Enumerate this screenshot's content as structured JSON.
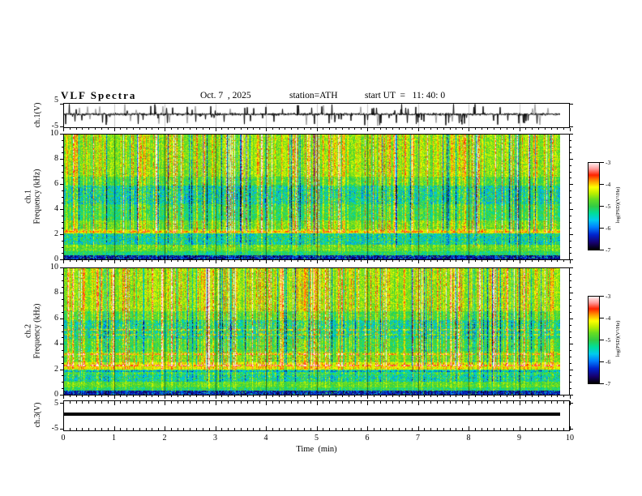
{
  "title_bar": {
    "main": "VLF  Spectra",
    "date": "Oct. 7  , 2025",
    "station": "station=ATH",
    "start_ut": "start UT  =   11: 40: 0"
  },
  "x_axis": {
    "label": "Time  (min)",
    "ticks": [
      "0",
      "1",
      "2",
      "3",
      "4",
      "5",
      "6",
      "7",
      "8",
      "9",
      "10"
    ],
    "lim": [
      0,
      10
    ],
    "minor_per_major": 8,
    "data_end_min": 9.8
  },
  "panels": {
    "ch1_wave": {
      "ylabel": "ch.1(V)",
      "ytick_top": "5",
      "ytick_bottom": "-5",
      "ylim": [
        -5,
        5
      ]
    },
    "ch1_spec": {
      "ylabel_line1": "ch.1",
      "ylabel_line2": "Frequency  (kHz)",
      "yticks": [
        "10",
        "8",
        "6",
        "4",
        "2",
        "0"
      ],
      "ylim": [
        0,
        10
      ]
    },
    "ch2_spec": {
      "ylabel_line1": "ch.2",
      "ylabel_line2": "Frequency  (kHz)",
      "yticks": [
        "10",
        "8",
        "6",
        "4",
        "2",
        "0"
      ],
      "ylim": [
        0,
        10
      ]
    },
    "ch3_wave": {
      "ylabel": "ch.3(V)",
      "ytick_top": "5",
      "ytick_bottom": "-5",
      "ylim": [
        -5,
        5
      ]
    }
  },
  "colorbar": {
    "label": "log(PSD)(V²/Hz)",
    "ticks": [
      "-3",
      "-4",
      "-5",
      "-6",
      "-7"
    ],
    "lim": [
      -7,
      -3
    ],
    "colormap": [
      [
        0.0,
        "#000000"
      ],
      [
        0.08,
        "#16006e"
      ],
      [
        0.17,
        "#0022cc"
      ],
      [
        0.26,
        "#0080ff"
      ],
      [
        0.34,
        "#00ccee"
      ],
      [
        0.42,
        "#00dd99"
      ],
      [
        0.5,
        "#33cc44"
      ],
      [
        0.58,
        "#66dd22"
      ],
      [
        0.65,
        "#bbee00"
      ],
      [
        0.72,
        "#ffff00"
      ],
      [
        0.79,
        "#ff9900"
      ],
      [
        0.86,
        "#ff2200"
      ],
      [
        0.93,
        "#ff9999"
      ],
      [
        1.0,
        "#fff2f2"
      ]
    ]
  },
  "chart_data": [
    {
      "type": "line",
      "title": "ch.1(V) broadband waveform",
      "xlabel": "Time (min)",
      "ylabel": "ch.1(V)",
      "xlim": [
        0,
        10
      ],
      "ylim": [
        -5,
        5
      ],
      "x_data_end": 9.8,
      "summary": "continuous noise about 0 V of ~±1 V with frequent bipolar impulsive sferic spikes reaching ±5 V"
    },
    {
      "type": "heatmap",
      "title": "ch.1 VLF spectrogram",
      "xlabel": "Time (min)",
      "ylabel": "Frequency (kHz)",
      "zlabel": "log(PSD)(V²/Hz)",
      "xlim": [
        0,
        10
      ],
      "ylim": [
        0,
        10
      ],
      "zlim": [
        -7,
        -3
      ],
      "bands": [
        {
          "f": [
            6.6,
            10.0
          ],
          "level": -4.6,
          "noise": 0.09
        },
        {
          "f": [
            5.9,
            6.6
          ],
          "level": -4.92,
          "noise": 0.1
        },
        {
          "f": [
            4.4,
            5.9
          ],
          "level": -5.4,
          "noise": 0.16
        },
        {
          "f": [
            3.1,
            4.4
          ],
          "level": -5.08,
          "noise": 0.11
        },
        {
          "f": [
            2.4,
            3.1
          ],
          "level": -4.76,
          "noise": 0.09
        },
        {
          "f": [
            2.05,
            2.4
          ],
          "level": -4.36,
          "noise": 0.08
        },
        {
          "f": [
            1.15,
            2.05
          ],
          "level": -5.4,
          "noise": 0.16
        },
        {
          "f": [
            0.65,
            1.15
          ],
          "level": -4.8,
          "noise": 0.09
        },
        {
          "f": [
            0.3,
            0.65
          ],
          "level": -5.16,
          "noise": 0.11
        },
        {
          "f": [
            0.0,
            0.3
          ],
          "level": -6.52,
          "noise": 0.1
        }
      ],
      "tones": [
        {
          "f": 2.2,
          "boost": 0.5,
          "dash": true
        }
      ],
      "texture": "dense vertical sferic streaks, strongest (red) above ~2.3 kHz; dark minute gridlines"
    },
    {
      "type": "heatmap",
      "title": "ch.2 VLF spectrogram",
      "xlabel": "Time (min)",
      "ylabel": "Frequency (kHz)",
      "zlabel": "log(PSD)(V²/Hz)",
      "xlim": [
        0,
        10
      ],
      "ylim": [
        0,
        10
      ],
      "zlim": [
        -7,
        -3
      ],
      "bands": [
        {
          "f": [
            6.6,
            10.0
          ],
          "level": -4.55,
          "noise": 0.09
        },
        {
          "f": [
            5.9,
            6.6
          ],
          "level": -4.9,
          "noise": 0.1
        },
        {
          "f": [
            4.4,
            5.9
          ],
          "level": -5.3,
          "noise": 0.16
        },
        {
          "f": [
            3.4,
            4.4
          ],
          "level": -5.0,
          "noise": 0.11
        },
        {
          "f": [
            2.55,
            3.4
          ],
          "level": -4.7,
          "noise": 0.09
        },
        {
          "f": [
            2.0,
            2.55
          ],
          "level": -4.25,
          "noise": 0.08
        },
        {
          "f": [
            1.6,
            2.0
          ],
          "level": -5.1,
          "noise": 0.14
        },
        {
          "f": [
            1.05,
            1.6
          ],
          "level": -5.35,
          "noise": 0.16
        },
        {
          "f": [
            0.6,
            1.05
          ],
          "level": -4.8,
          "noise": 0.09
        },
        {
          "f": [
            0.3,
            0.6
          ],
          "level": -5.1,
          "noise": 0.11
        },
        {
          "f": [
            0.0,
            0.3
          ],
          "level": -6.5,
          "noise": 0.1
        }
      ],
      "tones": [
        {
          "f": 5.15,
          "boost": 0.7,
          "dash": true
        },
        {
          "f": 4.75,
          "boost": 0.6,
          "dash": true
        },
        {
          "f": 3.2,
          "boost": 0.8,
          "dash": true
        },
        {
          "f": 2.3,
          "boost": 0.7,
          "dash": true
        },
        {
          "f": 1.85,
          "boost": -0.6,
          "dash": false
        }
      ],
      "texture": "dense vertical sferic streaks; narrowband dashed tone lines near 5.2, 4.8, 3.2, 2.3 kHz"
    },
    {
      "type": "line",
      "title": "ch.3(V) waveform",
      "xlabel": "Time (min)",
      "ylabel": "ch.3(V)",
      "xlim": [
        0,
        10
      ],
      "ylim": [
        -5,
        5
      ],
      "x_data_end": 9.8,
      "values_constant": 0,
      "summary": "flat line at 0 V (no signal)"
    }
  ]
}
